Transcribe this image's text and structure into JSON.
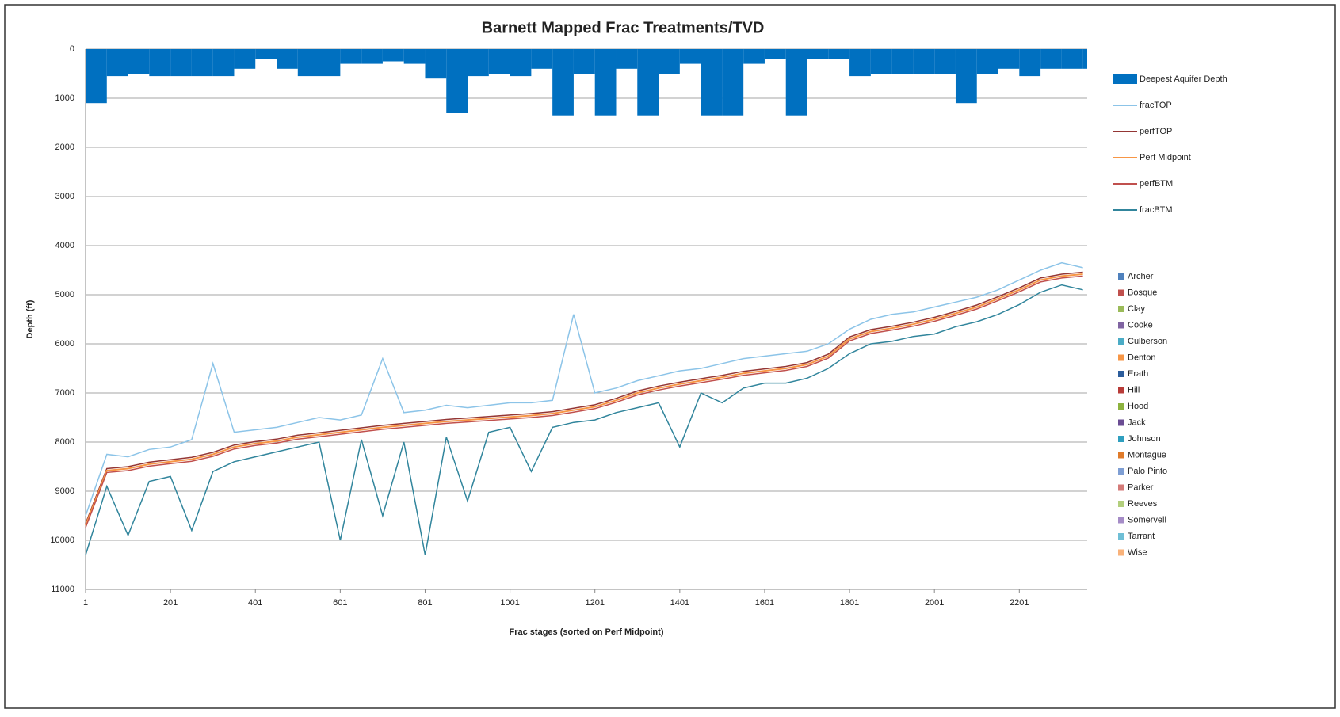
{
  "chart_data": {
    "type": "line",
    "title": "Barnett Mapped Frac Treatments/TVD",
    "xlabel": "Frac stages (sorted on Perf Midpoint)",
    "ylabel": "Depth (ft)",
    "x": [
      1,
      51,
      101,
      151,
      201,
      251,
      301,
      351,
      401,
      451,
      501,
      551,
      601,
      651,
      701,
      751,
      801,
      851,
      901,
      951,
      1001,
      1051,
      1101,
      1151,
      1201,
      1251,
      1301,
      1351,
      1401,
      1451,
      1501,
      1551,
      1601,
      1651,
      1701,
      1751,
      1801,
      1851,
      1901,
      1951,
      2001,
      2051,
      2101,
      2151,
      2201,
      2251,
      2301,
      2351
    ],
    "xlim": [
      1,
      2361
    ],
    "xticks": [
      1,
      201,
      401,
      601,
      801,
      1001,
      1201,
      1401,
      1601,
      1801,
      2001,
      2201
    ],
    "ylim": [
      0,
      11000
    ],
    "yinverted": true,
    "yticks": [
      0,
      1000,
      2000,
      3000,
      4000,
      5000,
      6000,
      7000,
      8000,
      9000,
      10000,
      11000
    ],
    "grid": true,
    "series": [
      {
        "name": "Deepest Aquifer Depth",
        "type": "bar",
        "color": "#0070c0",
        "values": [
          1100,
          550,
          500,
          550,
          550,
          550,
          550,
          400,
          200,
          400,
          550,
          550,
          300,
          300,
          250,
          300,
          600,
          1300,
          550,
          500,
          550,
          400,
          1350,
          500,
          1350,
          400,
          1350,
          500,
          300,
          1350,
          1350,
          300,
          200,
          1350,
          200,
          200,
          550,
          500,
          500,
          500,
          500,
          1100,
          500,
          400,
          550,
          400,
          400,
          400
        ]
      },
      {
        "name": "fracTOP",
        "color": "#8cc4e8",
        "values": [
          9500,
          8250,
          8300,
          8150,
          8100,
          7950,
          6400,
          7800,
          7750,
          7700,
          7600,
          7500,
          7550,
          7450,
          6300,
          7400,
          7350,
          7250,
          7300,
          7250,
          7200,
          7200,
          7150,
          5400,
          7000,
          6900,
          6750,
          6650,
          6550,
          6500,
          6400,
          6300,
          6250,
          6200,
          6150,
          6000,
          5700,
          5500,
          5400,
          5350,
          5250,
          5150,
          5050,
          4900,
          4700,
          4500,
          4350,
          4450
        ]
      },
      {
        "name": "perfTOP",
        "color": "#943634",
        "values": [
          9660,
          8540,
          8500,
          8410,
          8360,
          8310,
          8210,
          8060,
          7990,
          7940,
          7860,
          7810,
          7760,
          7710,
          7660,
          7620,
          7580,
          7540,
          7510,
          7480,
          7450,
          7420,
          7380,
          7310,
          7240,
          7110,
          6960,
          6860,
          6780,
          6710,
          6640,
          6560,
          6510,
          6460,
          6380,
          6210,
          5860,
          5710,
          5640,
          5560,
          5460,
          5340,
          5210,
          5040,
          4860,
          4660,
          4580,
          4540
        ]
      },
      {
        "name": "Perf Midpoint",
        "color": "#f79646",
        "values": [
          9700,
          8580,
          8540,
          8450,
          8400,
          8350,
          8250,
          8100,
          8030,
          7980,
          7900,
          7850,
          7800,
          7750,
          7700,
          7660,
          7620,
          7580,
          7550,
          7520,
          7490,
          7460,
          7420,
          7350,
          7280,
          7150,
          7000,
          6900,
          6820,
          6750,
          6680,
          6600,
          6550,
          6500,
          6420,
          6250,
          5900,
          5750,
          5680,
          5600,
          5500,
          5380,
          5250,
          5080,
          4900,
          4700,
          4620,
          4580
        ]
      },
      {
        "name": "perfBTM",
        "color": "#c0504d",
        "values": [
          9740,
          8620,
          8580,
          8490,
          8440,
          8390,
          8290,
          8140,
          8070,
          8020,
          7940,
          7890,
          7840,
          7790,
          7740,
          7700,
          7660,
          7620,
          7590,
          7560,
          7530,
          7500,
          7460,
          7390,
          7320,
          7190,
          7040,
          6940,
          6860,
          6790,
          6720,
          6640,
          6590,
          6540,
          6460,
          6290,
          5940,
          5790,
          5720,
          5640,
          5540,
          5420,
          5290,
          5120,
          4940,
          4740,
          4660,
          4620
        ]
      },
      {
        "name": "fracBTM",
        "color": "#31859c",
        "values": [
          10300,
          8900,
          9900,
          8800,
          8700,
          9800,
          8600,
          8400,
          8300,
          8200,
          8100,
          8000,
          10000,
          7950,
          9500,
          8000,
          10300,
          7900,
          9200,
          7800,
          7700,
          8600,
          7700,
          7600,
          7550,
          7400,
          7300,
          7200,
          8100,
          7000,
          7200,
          6900,
          6800,
          6800,
          6700,
          6500,
          6200,
          6000,
          5950,
          5850,
          5800,
          5650,
          5550,
          5400,
          5200,
          4950,
          4800,
          4900
        ]
      }
    ],
    "counties": [
      {
        "name": "Archer",
        "color": "#4f81bd"
      },
      {
        "name": "Bosque",
        "color": "#c0504d"
      },
      {
        "name": "Clay",
        "color": "#9bbb59"
      },
      {
        "name": "Cooke",
        "color": "#8064a2"
      },
      {
        "name": "Culberson",
        "color": "#4bacc6"
      },
      {
        "name": "Denton",
        "color": "#f79646"
      },
      {
        "name": "Erath",
        "color": "#2c5d9c"
      },
      {
        "name": "Hill",
        "color": "#b83b38"
      },
      {
        "name": "Hood",
        "color": "#8db33f"
      },
      {
        "name": "Jack",
        "color": "#6a4c93"
      },
      {
        "name": "Johnson",
        "color": "#2f9fbf"
      },
      {
        "name": "Montague",
        "color": "#e07b2a"
      },
      {
        "name": "Palo Pinto",
        "color": "#7f9fd4"
      },
      {
        "name": "Parker",
        "color": "#d47a78"
      },
      {
        "name": "Reeves",
        "color": "#b3cf7d"
      },
      {
        "name": "Somervell",
        "color": "#a58cc7"
      },
      {
        "name": "Tarrant",
        "color": "#6fbfd6"
      },
      {
        "name": "Wise",
        "color": "#f9b27a"
      }
    ]
  }
}
